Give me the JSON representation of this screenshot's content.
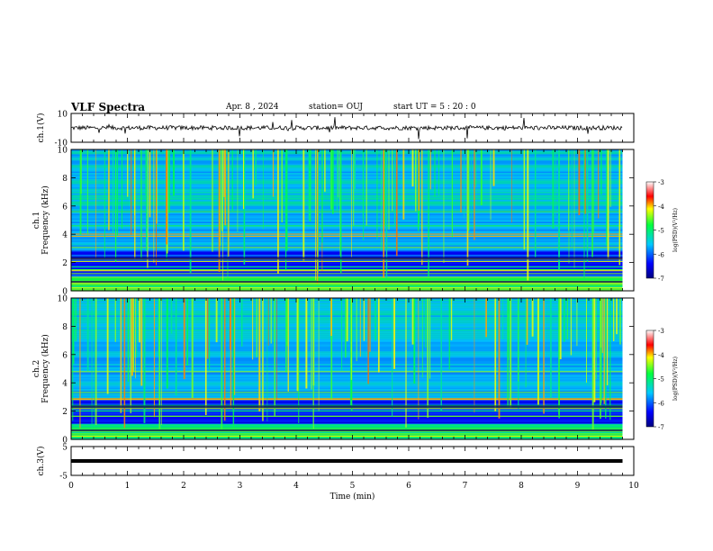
{
  "header": {
    "title": "VLF Spectra",
    "date": "Apr. 8 , 2024",
    "station": "station= OUJ",
    "start": "start  UT =   5 : 20 : 0"
  },
  "chart_data": [
    {
      "type": "line",
      "ylabel": "ch.1(V)",
      "ylim": [
        -10,
        10
      ],
      "yticks": [
        -10,
        10
      ],
      "xlim": [
        0,
        10
      ],
      "description_values": "noisy waveform near 0 V with spikes",
      "series": [
        {
          "values_x": [
            0,
            9.8
          ],
          "values_y": [
            0,
            0
          ]
        }
      ]
    },
    {
      "type": "heatmap",
      "ylabel": "ch.1\nFrequency  (kHz)",
      "ylim": [
        0,
        10
      ],
      "yticks": [
        0,
        2,
        4,
        6,
        8,
        10
      ],
      "xlim": [
        0,
        10
      ],
      "colorbar": {
        "label": "log(PSD)(V²/Hz)",
        "range": [
          -7,
          -3
        ],
        "ticks": [
          -3,
          -4,
          -5,
          -6,
          -7
        ]
      }
    },
    {
      "type": "heatmap",
      "ylabel": "ch.2\nFrequency  (kHz)",
      "ylim": [
        0,
        10
      ],
      "yticks": [
        0,
        2,
        4,
        6,
        8,
        10
      ],
      "xlim": [
        0,
        10
      ],
      "colorbar": {
        "label": "log(PSD)(V²/Hz)",
        "range": [
          -7,
          -3
        ],
        "ticks": [
          -3,
          -4,
          -5,
          -6,
          -7
        ]
      }
    },
    {
      "type": "line",
      "ylabel": "ch.3(V)",
      "ylim": [
        -5,
        5
      ],
      "yticks": [
        -5,
        5
      ],
      "xlim": [
        0,
        10
      ],
      "series": [
        {
          "values_x": [
            0,
            9.8
          ],
          "values_y": [
            0,
            0
          ]
        }
      ]
    }
  ],
  "xaxis": {
    "label": "Time  (min)",
    "ticks": [
      0,
      1,
      2,
      3,
      4,
      5,
      6,
      7,
      8,
      9,
      10
    ],
    "data_end": 9.8
  }
}
